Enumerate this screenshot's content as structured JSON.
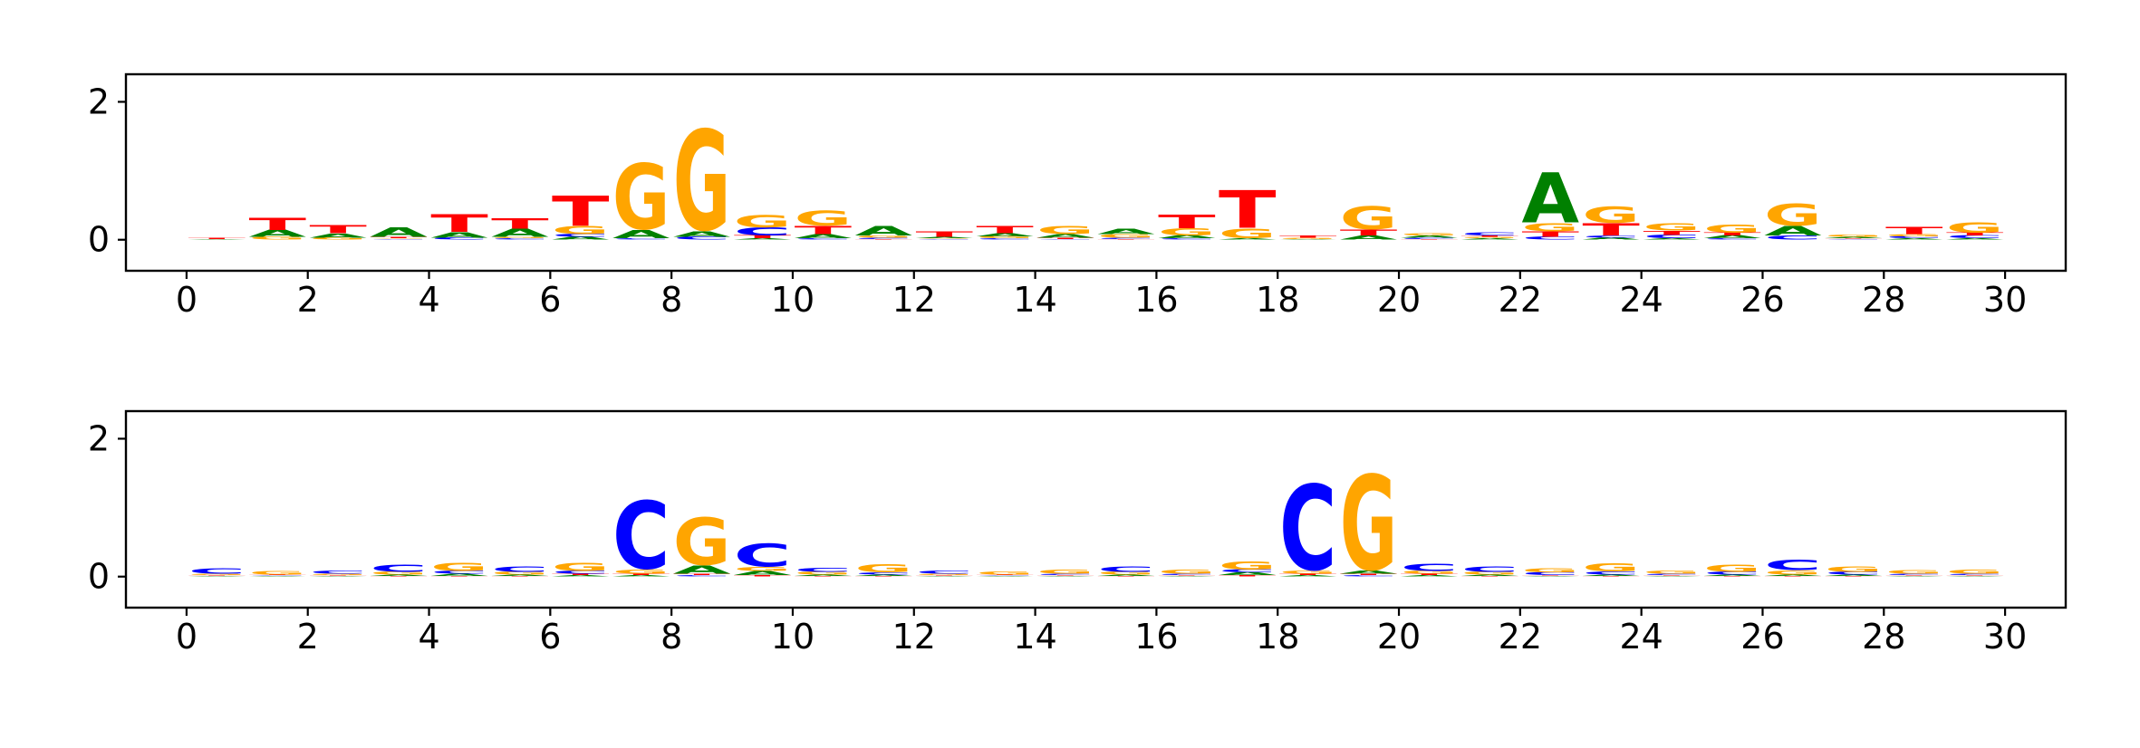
{
  "colors": {
    "A": "#008000",
    "C": "#0000ff",
    "G": "#ffa500",
    "T": "#ff0000",
    "axis": "#000000",
    "background": "#ffffff"
  },
  "chart_data": [
    {
      "type": "sequence-logo",
      "title": "",
      "xlabel": "",
      "ylabel": "",
      "xlim": [
        -1,
        31
      ],
      "ylim": [
        -0.45,
        2.4
      ],
      "xticks": [
        0,
        2,
        4,
        6,
        8,
        10,
        12,
        14,
        16,
        18,
        20,
        22,
        24,
        26,
        28,
        30
      ],
      "xtick_labels": [
        "0",
        "2",
        "4",
        "6",
        "8",
        "10",
        "12",
        "14",
        "16",
        "18",
        "20",
        "22",
        "24",
        "26",
        "28",
        "30"
      ],
      "yticks": [
        0,
        2
      ],
      "ytick_labels": [
        "0",
        "2"
      ],
      "alphabet": [
        "A",
        "C",
        "G",
        "T"
      ],
      "positions": [
        {
          "A": 0.01,
          "C": 0.0,
          "G": 0.0,
          "T": 0.02
        },
        {
          "A": 0.1,
          "C": 0.0,
          "G": 0.04,
          "T": 0.18
        },
        {
          "A": 0.06,
          "C": 0.0,
          "G": 0.03,
          "T": 0.12
        },
        {
          "A": 0.14,
          "C": 0.01,
          "G": 0.01,
          "T": 0.02
        },
        {
          "A": 0.08,
          "C": 0.03,
          "G": 0.0,
          "T": 0.26
        },
        {
          "A": 0.12,
          "C": 0.02,
          "G": 0.02,
          "T": 0.16
        },
        {
          "A": 0.04,
          "C": 0.04,
          "G": 0.12,
          "T": 0.44
        },
        {
          "A": 0.12,
          "C": 0.02,
          "G": 0.97,
          "T": 0.0
        },
        {
          "A": 0.08,
          "C": 0.04,
          "G": 1.48,
          "T": 0.0
        },
        {
          "A": 0.02,
          "C": 0.12,
          "G": 0.18,
          "T": 0.04
        },
        {
          "A": 0.06,
          "C": 0.02,
          "G": 0.22,
          "T": 0.12
        },
        {
          "A": 0.14,
          "C": 0.02,
          "G": 0.03,
          "T": 0.01
        },
        {
          "A": 0.02,
          "C": 0.01,
          "G": 0.01,
          "T": 0.08
        },
        {
          "A": 0.04,
          "C": 0.02,
          "G": 0.03,
          "T": 0.1
        },
        {
          "A": 0.05,
          "C": 0.01,
          "G": 0.12,
          "T": 0.02
        },
        {
          "A": 0.08,
          "C": 0.02,
          "G": 0.05,
          "T": 0.01
        },
        {
          "A": 0.04,
          "C": 0.02,
          "G": 0.1,
          "T": 0.2
        },
        {
          "A": 0.02,
          "C": 0.0,
          "G": 0.14,
          "T": 0.56
        },
        {
          "A": 0.01,
          "C": 0.0,
          "G": 0.02,
          "T": 0.03
        },
        {
          "A": 0.06,
          "C": 0.0,
          "G": 0.34,
          "T": 0.09
        },
        {
          "A": 0.03,
          "C": 0.02,
          "G": 0.03,
          "T": 0.01
        },
        {
          "A": 0.02,
          "C": 0.04,
          "G": 0.02,
          "T": 0.02
        },
        {
          "A": 0.74,
          "C": 0.04,
          "G": 0.12,
          "T": 0.08
        },
        {
          "A": 0.03,
          "C": 0.03,
          "G": 0.24,
          "T": 0.18
        },
        {
          "A": 0.02,
          "C": 0.05,
          "G": 0.1,
          "T": 0.06
        },
        {
          "A": 0.04,
          "C": 0.02,
          "G": 0.12,
          "T": 0.04
        },
        {
          "A": 0.14,
          "C": 0.06,
          "G": 0.32,
          "T": 0.0
        },
        {
          "A": 0.02,
          "C": 0.01,
          "G": 0.03,
          "T": 0.01
        },
        {
          "A": 0.02,
          "C": 0.03,
          "G": 0.03,
          "T": 0.1
        },
        {
          "A": 0.02,
          "C": 0.04,
          "G": 0.16,
          "T": 0.04
        }
      ]
    },
    {
      "type": "sequence-logo",
      "title": "",
      "xlabel": "",
      "ylabel": "",
      "xlim": [
        -1,
        31
      ],
      "ylim": [
        -0.45,
        2.4
      ],
      "xticks": [
        0,
        2,
        4,
        6,
        8,
        10,
        12,
        14,
        16,
        18,
        20,
        22,
        24,
        26,
        28,
        30
      ],
      "xtick_labels": [
        "0",
        "2",
        "4",
        "6",
        "8",
        "10",
        "12",
        "14",
        "16",
        "18",
        "20",
        "22",
        "24",
        "26",
        "28",
        "30"
      ],
      "yticks": [
        0,
        2
      ],
      "ytick_labels": [
        "0",
        "2"
      ],
      "alphabet": [
        "A",
        "C",
        "G",
        "T"
      ],
      "positions": [
        {
          "A": 0.01,
          "C": 0.08,
          "G": 0.02,
          "T": 0.01
        },
        {
          "A": 0.01,
          "C": 0.01,
          "G": 0.05,
          "T": 0.01
        },
        {
          "A": 0.01,
          "C": 0.04,
          "G": 0.02,
          "T": 0.01
        },
        {
          "A": 0.02,
          "C": 0.1,
          "G": 0.04,
          "T": 0.01
        },
        {
          "A": 0.03,
          "C": 0.04,
          "G": 0.12,
          "T": 0.01
        },
        {
          "A": 0.02,
          "C": 0.08,
          "G": 0.04,
          "T": 0.01
        },
        {
          "A": 0.02,
          "C": 0.04,
          "G": 0.12,
          "T": 0.02
        },
        {
          "A": 0.02,
          "C": 1.0,
          "G": 0.06,
          "T": 0.02
        },
        {
          "A": 0.12,
          "C": 0.02,
          "G": 0.7,
          "T": 0.02
        },
        {
          "A": 0.06,
          "C": 0.34,
          "G": 0.06,
          "T": 0.02
        },
        {
          "A": 0.02,
          "C": 0.06,
          "G": 0.04,
          "T": 0.01
        },
        {
          "A": 0.02,
          "C": 0.03,
          "G": 0.12,
          "T": 0.01
        },
        {
          "A": 0.01,
          "C": 0.04,
          "G": 0.02,
          "T": 0.01
        },
        {
          "A": 0.01,
          "C": 0.01,
          "G": 0.04,
          "T": 0.01
        },
        {
          "A": 0.01,
          "C": 0.02,
          "G": 0.06,
          "T": 0.01
        },
        {
          "A": 0.02,
          "C": 0.08,
          "G": 0.04,
          "T": 0.01
        },
        {
          "A": 0.01,
          "C": 0.02,
          "G": 0.06,
          "T": 0.01
        },
        {
          "A": 0.04,
          "C": 0.04,
          "G": 0.12,
          "T": 0.02
        },
        {
          "A": 0.02,
          "C": 1.26,
          "G": 0.04,
          "T": 0.02
        },
        {
          "A": 0.04,
          "C": 0.02,
          "G": 1.4,
          "T": 0.02
        },
        {
          "A": 0.02,
          "C": 0.1,
          "G": 0.04,
          "T": 0.02
        },
        {
          "A": 0.02,
          "C": 0.08,
          "G": 0.04,
          "T": 0.01
        },
        {
          "A": 0.01,
          "C": 0.04,
          "G": 0.06,
          "T": 0.01
        },
        {
          "A": 0.02,
          "C": 0.04,
          "G": 0.12,
          "T": 0.01
        },
        {
          "A": 0.01,
          "C": 0.02,
          "G": 0.04,
          "T": 0.01
        },
        {
          "A": 0.02,
          "C": 0.04,
          "G": 0.1,
          "T": 0.01
        },
        {
          "A": 0.02,
          "C": 0.16,
          "G": 0.06,
          "T": 0.01
        },
        {
          "A": 0.02,
          "C": 0.04,
          "G": 0.08,
          "T": 0.01
        },
        {
          "A": 0.01,
          "C": 0.02,
          "G": 0.05,
          "T": 0.01
        },
        {
          "A": 0.01,
          "C": 0.02,
          "G": 0.06,
          "T": 0.01
        }
      ]
    }
  ]
}
